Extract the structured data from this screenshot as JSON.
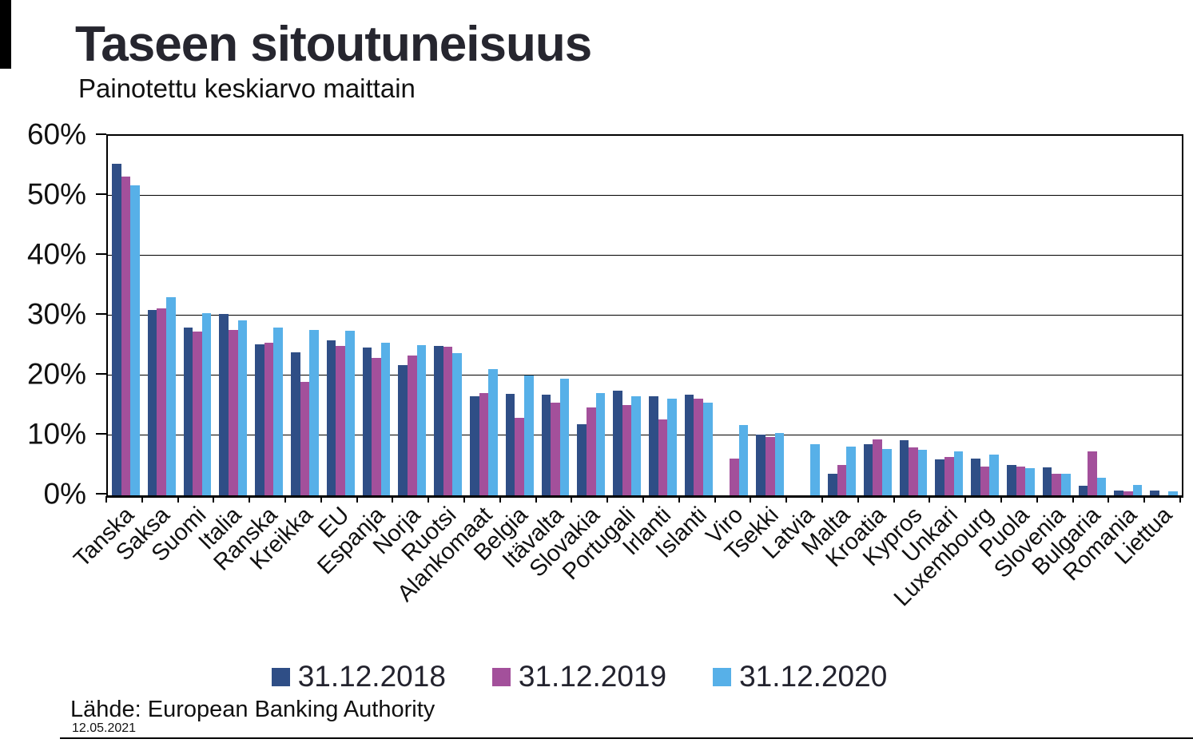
{
  "title": "Taseen sitoutuneisuus",
  "subtitle": "Painotettu keskiarvo maittain",
  "source_note": "Lähde: European Banking Authority",
  "date_note": "12.05.2021",
  "colors": {
    "series_2018": "#2F4E86",
    "series_2019": "#A3509B",
    "series_2020": "#57B0E8",
    "grid": "#000000",
    "text": "#23232e"
  },
  "chart_data": {
    "type": "bar",
    "title": "Taseen sitoutuneisuus",
    "subtitle": "Painotettu keskiarvo maittain",
    "ylabel": "",
    "xlabel": "",
    "ylim": [
      0,
      60
    ],
    "grid": true,
    "legend_position": "bottom",
    "ytick_labels": [
      "0%",
      "10%",
      "20%",
      "30%",
      "40%",
      "50%",
      "60%"
    ],
    "ytick_values": [
      0,
      10,
      20,
      30,
      40,
      50,
      60
    ],
    "categories": [
      "Tanska",
      "Saksa",
      "Suomi",
      "Italia",
      "Ranska",
      "Kreikka",
      "EU",
      "Espanja",
      "Norja",
      "Ruotsi",
      "Alankomaat",
      "Belgia",
      "Itävalta",
      "Slovakia",
      "Portugali",
      "Irlanti",
      "Islanti",
      "Viro",
      "Tsekki",
      "Latvia",
      "Malta",
      "Kroatia",
      "Kypros",
      "Unkari",
      "Luxembourg",
      "Puola",
      "Slovenia",
      "Bulgaria",
      "Romania",
      "Liettua"
    ],
    "series": [
      {
        "name": "31.12.2018",
        "color": "#2F4E86",
        "values": [
          55.3,
          30.9,
          28.0,
          30.3,
          25.2,
          23.9,
          25.9,
          24.7,
          21.8,
          24.9,
          16.6,
          17.0,
          16.8,
          11.9,
          17.5,
          16.5,
          16.8,
          null,
          10.1,
          null,
          3.6,
          8.5,
          9.2,
          6.0,
          6.1,
          5.1,
          4.7,
          1.6,
          0.8,
          0.8
        ]
      },
      {
        "name": "31.12.2019",
        "color": "#A3509B",
        "values": [
          53.2,
          31.2,
          27.3,
          27.6,
          25.5,
          18.9,
          25.0,
          22.9,
          23.4,
          24.8,
          17.1,
          13.0,
          15.5,
          14.7,
          15.1,
          12.7,
          16.2,
          6.1,
          9.8,
          null,
          5.1,
          9.3,
          8.0,
          6.4,
          4.8,
          4.8,
          3.6,
          7.3,
          0.7,
          null
        ]
      },
      {
        "name": "31.12.2020",
        "color": "#57B0E8",
        "values": [
          51.8,
          33.1,
          30.4,
          29.2,
          28.0,
          27.6,
          27.5,
          25.5,
          25.1,
          23.7,
          21.1,
          20.0,
          19.5,
          17.1,
          16.6,
          16.1,
          15.5,
          11.8,
          10.4,
          8.6,
          8.1,
          7.8,
          7.6,
          7.3,
          6.8,
          4.6,
          3.6,
          2.9,
          1.8,
          0.7
        ]
      }
    ]
  }
}
